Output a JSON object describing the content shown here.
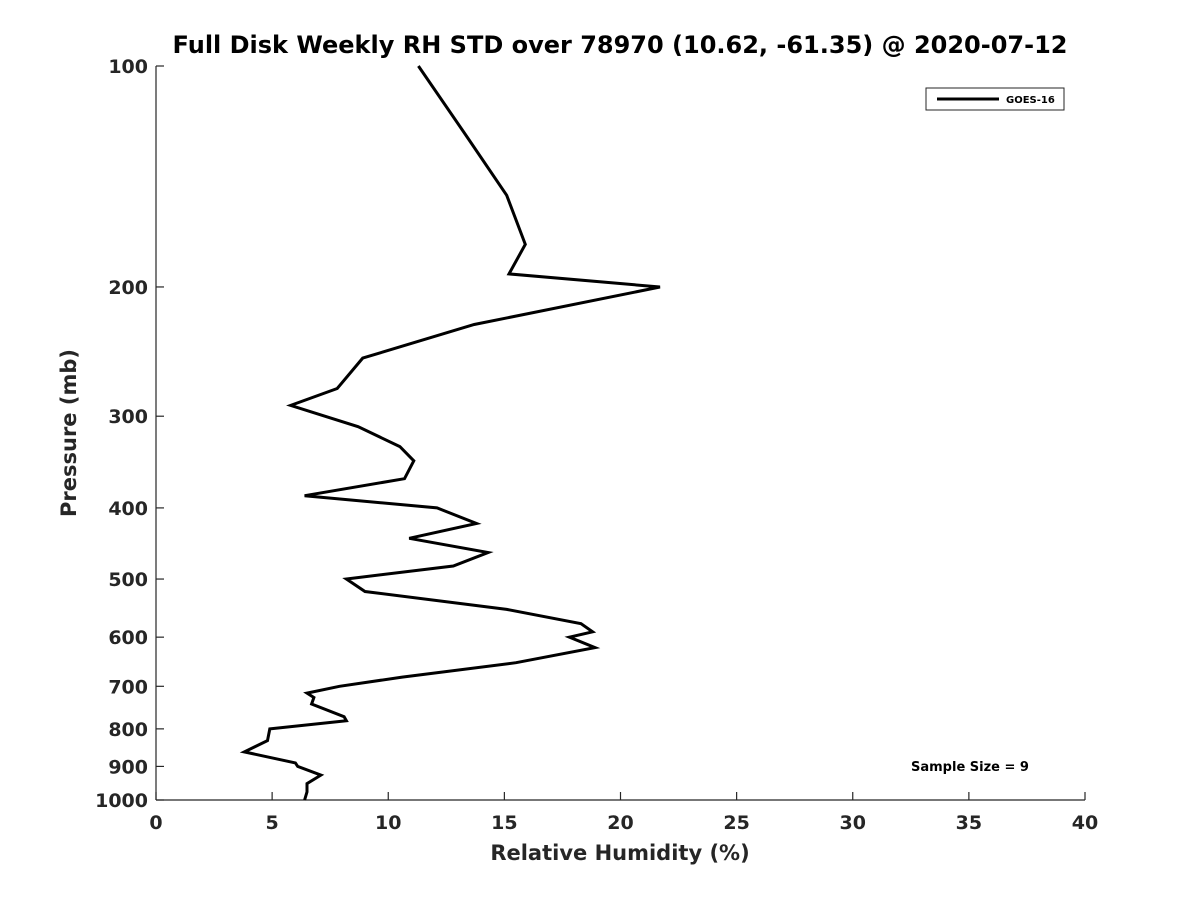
{
  "chart_data": {
    "type": "line",
    "title": "Full Disk Weekly RH STD over 78970 (10.62, -61.35) @ 2020-07-12",
    "xlabel": "Relative Humidity (%)",
    "ylabel": "Pressure (mb)",
    "xlim": [
      0,
      40
    ],
    "ylim": [
      100,
      1000
    ],
    "yscale": "log",
    "yreverse": true,
    "grid": false,
    "legend_position": "top-right",
    "xticks": [
      0,
      5,
      10,
      15,
      20,
      25,
      30,
      35,
      40
    ],
    "xtick_labels": [
      "0",
      "5",
      "10",
      "15",
      "20",
      "25",
      "30",
      "35",
      "40"
    ],
    "yticks": [
      100,
      200,
      300,
      400,
      500,
      600,
      700,
      800,
      900,
      1000
    ],
    "ytick_labels": [
      "100",
      "200",
      "300",
      "400",
      "500",
      "600",
      "700",
      "800",
      "900",
      "1000"
    ],
    "series": [
      {
        "name": "GOES-16",
        "color": "#000000",
        "x": [
          11.3,
          13.4,
          15.1,
          15.9,
          15.2,
          21.7,
          13.7,
          8.9,
          7.8,
          5.8,
          8.7,
          10.5,
          11.1,
          10.7,
          6.4,
          12.1,
          13.8,
          10.9,
          14.3,
          12.8,
          8.2,
          9.0,
          15.1,
          18.3,
          18.8,
          17.8,
          18.9,
          15.5,
          10.6,
          7.9,
          6.5,
          6.8,
          6.7,
          8.1,
          8.2,
          4.9,
          4.8,
          3.8,
          6.0,
          6.1,
          7.1,
          6.5,
          6.5,
          6.4
        ],
        "y": [
          100,
          125,
          150,
          175,
          192,
          200,
          225,
          250,
          275,
          290,
          310,
          330,
          345,
          365,
          385,
          400,
          420,
          440,
          460,
          480,
          500,
          520,
          550,
          575,
          590,
          600,
          620,
          650,
          680,
          700,
          715,
          725,
          740,
          770,
          780,
          800,
          830,
          860,
          890,
          900,
          925,
          950,
          975,
          1000
        ]
      }
    ],
    "annotations": [
      "Sample Size = 9"
    ]
  }
}
